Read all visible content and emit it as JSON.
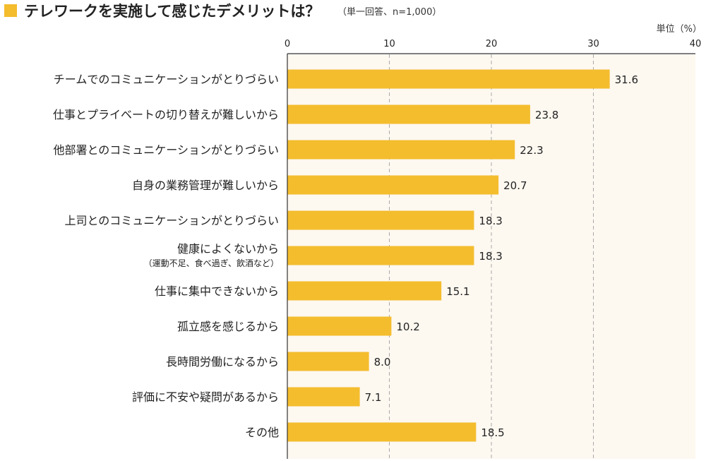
{
  "chart_data": {
    "type": "bar",
    "orientation": "horizontal",
    "title": "テレワークを実施して感じたデメリットは？",
    "subtitle": "（単一回答、n=1,000）",
    "unit_label": "単位（%）",
    "xlim": [
      0,
      40
    ],
    "ticks": [
      "0",
      "10",
      "20",
      "30",
      "40"
    ],
    "grid": true,
    "bar_color": "#F4BD2E",
    "title_marker_color": "#F4BD2E",
    "plot_background": "#FDF8F0",
    "categories": [
      "チームでのコミュニケーションがとりづらい",
      "仕事とプライベートの切り替えが難しいから",
      "他部署とのコミュニケーションがとりづらい",
      "自身の業務管理が難しいから",
      "上司とのコミュニケーションがとりづらい",
      "健康によくないから",
      "仕事に集中できないから",
      "孤立感を感じるから",
      "長時間労働になるから",
      "評価に不安や疑問があるから",
      "その他"
    ],
    "category_notes": [
      "",
      "",
      "",
      "",
      "",
      "（運動不足、食べ過ぎ、飲酒など）",
      "",
      "",
      "",
      "",
      ""
    ],
    "values": [
      31.6,
      23.8,
      22.3,
      20.7,
      18.3,
      18.3,
      15.1,
      10.2,
      8.0,
      7.1,
      18.5
    ],
    "value_labels": [
      "31.6",
      "23.8",
      "22.3",
      "20.7",
      "18.3",
      "18.3",
      "15.1",
      "10.2",
      "8.0",
      "7.1",
      "18.5"
    ]
  }
}
